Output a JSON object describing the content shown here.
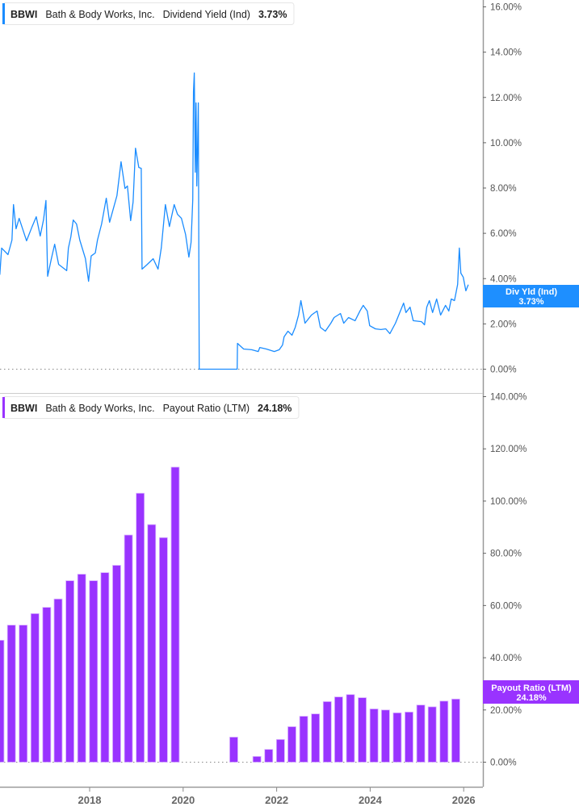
{
  "colors": {
    "line": "#1a8cff",
    "bar": "#9933ff",
    "badge_line": "#1e8fff",
    "badge_bar": "#9933ff"
  },
  "chart_data": [
    {
      "type": "line",
      "legend": {
        "ticker": "BBWI",
        "company": "Bath & Body Works, Inc.",
        "metric": "Dividend Yield (Ind)",
        "value": "3.73%"
      },
      "badge": {
        "label": "Div Yld (Ind)",
        "value": "3.73%"
      },
      "ylim": [
        0,
        16
      ],
      "y_ticks": [
        "0.00%",
        "2.00%",
        "4.00%",
        "6.00%",
        "8.00%",
        "10.00%",
        "12.00%",
        "14.00%",
        "16.00%"
      ],
      "y_tick_values": [
        0,
        2,
        4,
        6,
        8,
        10,
        12,
        14,
        16
      ],
      "grid": false,
      "series": [
        {
          "points": [
            [
              "2016-01-30",
              4.17
            ],
            [
              "2016-02-13",
              5.35
            ],
            [
              "2016-04-03",
              5.06
            ],
            [
              "2016-05-04",
              5.7
            ],
            [
              "2016-05-16",
              7.27
            ],
            [
              "2016-06-05",
              6.2
            ],
            [
              "2016-06-29",
              6.66
            ],
            [
              "2016-08-26",
              5.67
            ],
            [
              "2016-10-09",
              6.3
            ],
            [
              "2016-11-10",
              6.73
            ],
            [
              "2016-12-11",
              5.88
            ],
            [
              "2017-01-06",
              6.6
            ],
            [
              "2017-01-25",
              7.45
            ],
            [
              "2017-02-07",
              4.1
            ],
            [
              "2017-03-08",
              4.88
            ],
            [
              "2017-04-03",
              5.52
            ],
            [
              "2017-05-04",
              4.63
            ],
            [
              "2017-07-06",
              4.35
            ],
            [
              "2017-07-19",
              5.35
            ],
            [
              "2017-08-07",
              5.84
            ],
            [
              "2017-08-26",
              6.59
            ],
            [
              "2017-09-21",
              6.41
            ],
            [
              "2017-10-16",
              5.7
            ],
            [
              "2017-11-29",
              4.88
            ],
            [
              "2017-12-24",
              3.88
            ],
            [
              "2018-01-13",
              5.0
            ],
            [
              "2018-02-14",
              5.13
            ],
            [
              "2018-03-03",
              5.7
            ],
            [
              "2018-04-04",
              6.41
            ],
            [
              "2018-05-11",
              7.55
            ],
            [
              "2018-06-06",
              6.49
            ],
            [
              "2018-08-02",
              7.66
            ],
            [
              "2018-09-03",
              9.16
            ],
            [
              "2018-10-04",
              7.98
            ],
            [
              "2018-10-23",
              8.09
            ],
            [
              "2018-11-17",
              6.56
            ],
            [
              "2018-12-06",
              7.38
            ],
            [
              "2018-12-25",
              9.76
            ],
            [
              "2019-01-20",
              8.91
            ],
            [
              "2019-02-08",
              8.87
            ],
            [
              "2019-02-14",
              4.42
            ],
            [
              "2019-03-22",
              4.6
            ],
            [
              "2019-05-12",
              4.88
            ],
            [
              "2019-06-19",
              4.42
            ],
            [
              "2019-07-14",
              5.35
            ],
            [
              "2019-08-15",
              7.27
            ],
            [
              "2019-09-16",
              6.3
            ],
            [
              "2019-10-23",
              7.27
            ],
            [
              "2019-11-18",
              6.84
            ],
            [
              "2019-12-19",
              6.66
            ],
            [
              "2020-01-20",
              5.95
            ],
            [
              "2020-02-15",
              4.95
            ],
            [
              "2020-03-03",
              5.6
            ],
            [
              "2020-03-16",
              7.48
            ],
            [
              "2020-03-22",
              12.26
            ],
            [
              "2020-03-28",
              13.08
            ],
            [
              "2020-04-05",
              8.7
            ],
            [
              "2020-04-11",
              11.76
            ],
            [
              "2020-04-17",
              8.09
            ],
            [
              "2020-04-23",
              9.87
            ],
            [
              "2020-04-29",
              11.76
            ],
            [
              "2020-05-06",
              0
            ],
            [
              "2021-02-27",
              0
            ],
            [
              "2021-03-01",
              1.14
            ],
            [
              "2021-04-18",
              0.89
            ],
            [
              "2021-06-20",
              0.86
            ],
            [
              "2021-08-10",
              0.78
            ],
            [
              "2021-08-22",
              0.96
            ],
            [
              "2021-10-12",
              0.89
            ],
            [
              "2021-12-14",
              0.78
            ],
            [
              "2022-01-21",
              0.86
            ],
            [
              "2022-02-16",
              1.07
            ],
            [
              "2022-02-28",
              1.43
            ],
            [
              "2022-03-30",
              1.68
            ],
            [
              "2022-05-01",
              1.5
            ],
            [
              "2022-05-26",
              1.85
            ],
            [
              "2022-06-21",
              2.39
            ],
            [
              "2022-07-09",
              3.03
            ],
            [
              "2022-08-10",
              2.03
            ],
            [
              "2022-09-30",
              2.39
            ],
            [
              "2022-11-13",
              2.57
            ],
            [
              "2022-12-08",
              1.85
            ],
            [
              "2023-01-16",
              1.68
            ],
            [
              "2023-02-28",
              2.03
            ],
            [
              "2023-03-25",
              2.28
            ],
            [
              "2023-05-14",
              2.46
            ],
            [
              "2023-06-09",
              2.03
            ],
            [
              "2023-07-16",
              2.28
            ],
            [
              "2023-09-05",
              2.14
            ],
            [
              "2023-10-13",
              2.57
            ],
            [
              "2023-11-08",
              2.82
            ],
            [
              "2023-12-09",
              2.57
            ],
            [
              "2023-12-28",
              1.92
            ],
            [
              "2024-02-11",
              1.78
            ],
            [
              "2024-03-25",
              1.75
            ],
            [
              "2024-05-02",
              1.78
            ],
            [
              "2024-06-03",
              1.57
            ],
            [
              "2024-07-17",
              2.03
            ],
            [
              "2024-08-12",
              2.39
            ],
            [
              "2024-09-19",
              2.92
            ],
            [
              "2024-10-07",
              2.5
            ],
            [
              "2024-11-08",
              2.74
            ],
            [
              "2024-12-03",
              2.14
            ],
            [
              "2025-02-05",
              2.1
            ],
            [
              "2025-03-01",
              1.96
            ],
            [
              "2025-03-19",
              2.74
            ],
            [
              "2025-04-08",
              3.03
            ],
            [
              "2025-05-03",
              2.5
            ],
            [
              "2025-06-04",
              3.1
            ],
            [
              "2025-07-05",
              2.39
            ],
            [
              "2025-08-12",
              2.82
            ],
            [
              "2025-09-07",
              2.57
            ],
            [
              "2025-09-26",
              3.1
            ],
            [
              "2025-10-21",
              3.03
            ],
            [
              "2025-11-15",
              3.74
            ],
            [
              "2025-11-28",
              5.35
            ],
            [
              "2025-12-10",
              4.24
            ],
            [
              "2025-12-29",
              4.06
            ],
            [
              "2026-01-18",
              3.46
            ],
            [
              "2026-02-06",
              3.73
            ]
          ]
        }
      ]
    },
    {
      "type": "bar",
      "legend": {
        "ticker": "BBWI",
        "company": "Bath & Body Works, Inc.",
        "metric": "Payout Ratio (LTM)",
        "value": "24.18%"
      },
      "badge": {
        "label": "Payout Ratio (LTM)",
        "value": "24.18%"
      },
      "ylim": [
        0,
        140
      ],
      "y_ticks": [
        "0.00%",
        "20.00%",
        "40.00%",
        "60.00%",
        "80.00%",
        "100.00%",
        "120.00%",
        "140.00%"
      ],
      "y_tick_values": [
        0,
        20,
        40,
        60,
        80,
        100,
        120,
        140
      ],
      "grid": false,
      "categories": [
        "2016-01-31",
        "2016-04-30",
        "2016-07-31",
        "2016-10-31",
        "2017-01-31",
        "2017-04-30",
        "2017-07-31",
        "2017-10-31",
        "2018-01-31",
        "2018-04-30",
        "2018-07-31",
        "2018-10-31",
        "2019-01-31",
        "2019-04-30",
        "2019-07-31",
        "2019-10-31",
        "2021-01-31",
        "2021-07-31",
        "2021-10-31",
        "2022-01-31",
        "2022-04-30",
        "2022-07-31",
        "2022-10-31",
        "2023-01-31",
        "2023-04-30",
        "2023-07-31",
        "2023-10-31",
        "2024-01-31",
        "2024-04-30",
        "2024-07-31",
        "2024-10-31",
        "2025-01-31",
        "2025-04-30",
        "2025-07-31",
        "2025-10-31"
      ],
      "values": [
        46.7,
        52.5,
        52.5,
        56.9,
        59.3,
        62.5,
        69.5,
        72.0,
        69.5,
        72.6,
        75.4,
        87.0,
        103.0,
        91.0,
        86.0,
        113.0,
        9.6,
        2.2,
        4.9,
        8.7,
        13.6,
        17.6,
        18.5,
        23.2,
        25.0,
        25.9,
        24.7,
        20.4,
        20.0,
        18.9,
        19.2,
        21.9,
        21.2,
        23.4,
        24.18
      ]
    }
  ],
  "x_axis": {
    "ticks": [
      "2018",
      "2020",
      "2022",
      "2024",
      "2026"
    ],
    "tick_values": [
      2018,
      2020,
      2022,
      2024,
      2026
    ]
  }
}
